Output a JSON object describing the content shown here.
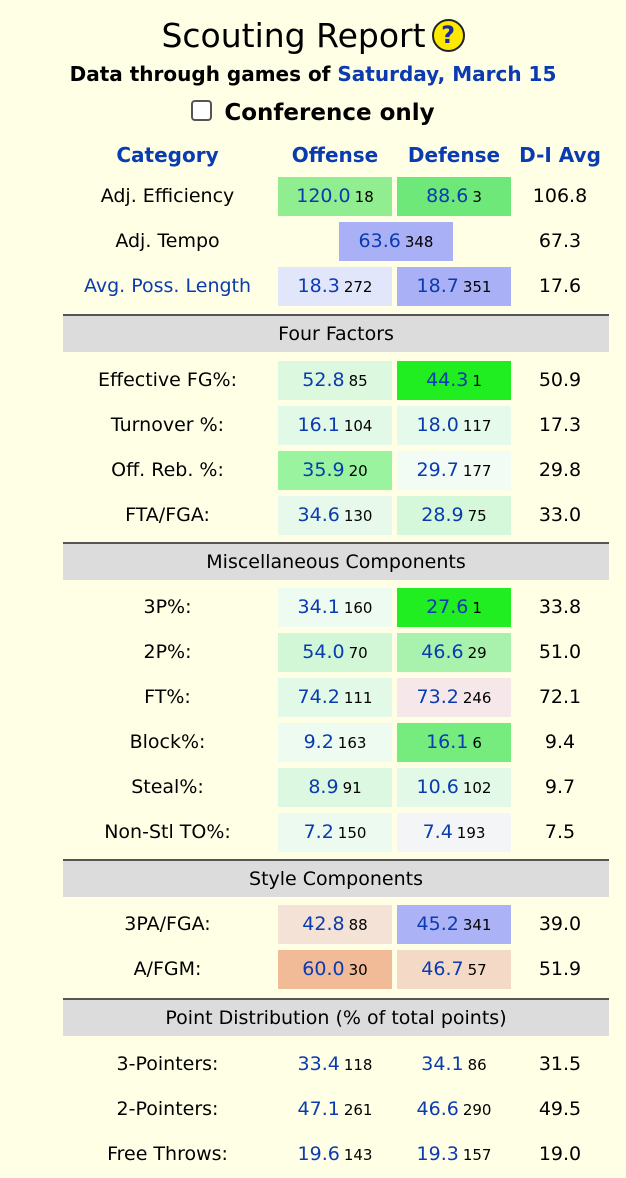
{
  "header": {
    "title": "Scouting Report",
    "help_glyph": "?",
    "subtitle_prefix": "Data through games of",
    "subtitle_date": "Saturday, March 15",
    "conference_only_label": "Conference only",
    "conference_only_checked": false
  },
  "columns": {
    "category": "Category",
    "offense": "Offense",
    "defense": "Defense",
    "avg": "D-I Avg"
  },
  "top_rows": [
    {
      "label": "Adj. Efficiency",
      "link": false,
      "off": {
        "val": "120.0",
        "rank": "18",
        "bg": "#90ee90"
      },
      "def": {
        "val": "88.6",
        "rank": "3",
        "bg": "#6fe87a"
      },
      "avg": "106.8"
    },
    {
      "label": "Adj. Tempo",
      "link": false,
      "combined": {
        "val": "63.6",
        "rank": "348",
        "bg": "#aab0f6"
      },
      "avg": "67.3"
    },
    {
      "label": "Avg. Poss. Length",
      "link": true,
      "off": {
        "val": "18.3",
        "rank": "272",
        "bg": "#e2e6fb"
      },
      "def": {
        "val": "18.7",
        "rank": "351",
        "bg": "#aab0f6"
      },
      "avg": "17.6"
    }
  ],
  "sections": [
    {
      "title": "Four Factors",
      "rows": [
        {
          "label": "Effective FG%:",
          "off": {
            "val": "52.8",
            "rank": "85",
            "bg": "#dcf9e0"
          },
          "def": {
            "val": "44.3",
            "rank": "1",
            "bg": "#21ee21"
          },
          "avg": "50.9"
        },
        {
          "label": "Turnover %:",
          "off": {
            "val": "16.1",
            "rank": "104",
            "bg": "#e2f9e8"
          },
          "def": {
            "val": "18.0",
            "rank": "117",
            "bg": "#e6faeb"
          },
          "avg": "17.3"
        },
        {
          "label": "Off. Reb. %:",
          "off": {
            "val": "35.9",
            "rank": "20",
            "bg": "#9af39e"
          },
          "def": {
            "val": "29.7",
            "rank": "177",
            "bg": "#f3fcf4"
          },
          "avg": "29.8"
        },
        {
          "label": "FTA/FGA:",
          "off": {
            "val": "34.6",
            "rank": "130",
            "bg": "#e7f9ea"
          },
          "def": {
            "val": "28.9",
            "rank": "75",
            "bg": "#d5f7da"
          },
          "avg": "33.0"
        }
      ]
    },
    {
      "title": "Miscellaneous Components",
      "rows": [
        {
          "label": "3P%:",
          "off": {
            "val": "34.1",
            "rank": "160",
            "bg": "#eefbf0"
          },
          "def": {
            "val": "27.6",
            "rank": "1",
            "bg": "#21ee21"
          },
          "avg": "33.8"
        },
        {
          "label": "2P%:",
          "off": {
            "val": "54.0",
            "rank": "70",
            "bg": "#d2f7d7"
          },
          "def": {
            "val": "46.6",
            "rank": "29",
            "bg": "#a8f2ad"
          },
          "avg": "51.0"
        },
        {
          "label": "FT%:",
          "off": {
            "val": "74.2",
            "rank": "111",
            "bg": "#e1f9e6"
          },
          "def": {
            "val": "73.2",
            "rank": "246",
            "bg": "#f5e7ea"
          },
          "avg": "72.1"
        },
        {
          "label": "Block%:",
          "off": {
            "val": "9.2",
            "rank": "163",
            "bg": "#eefbf0"
          },
          "def": {
            "val": "16.1",
            "rank": "6",
            "bg": "#76ec7e"
          },
          "avg": "9.4"
        },
        {
          "label": "Steal%:",
          "off": {
            "val": "8.9",
            "rank": "91",
            "bg": "#dcf8e0"
          },
          "def": {
            "val": "10.6",
            "rank": "102",
            "bg": "#e1f9e6"
          },
          "avg": "9.7"
        },
        {
          "label": "Non-Stl TO%:",
          "off": {
            "val": "7.2",
            "rank": "150",
            "bg": "#ecfaef"
          },
          "def": {
            "val": "7.4",
            "rank": "193",
            "bg": "#f3f5f7"
          },
          "avg": "7.5"
        }
      ]
    },
    {
      "title": "Style Components",
      "rows": [
        {
          "label": "3PA/FGA:",
          "off": {
            "val": "42.8",
            "rank": "88",
            "bg": "#f5e2d6"
          },
          "def": {
            "val": "45.2",
            "rank": "341",
            "bg": "#acb2f6"
          },
          "avg": "39.0"
        },
        {
          "label": "A/FGM:",
          "off": {
            "val": "60.0",
            "rank": "30",
            "bg": "#f2bb98"
          },
          "def": {
            "val": "46.7",
            "rank": "57",
            "bg": "#f4d9c6"
          },
          "avg": "51.9"
        }
      ]
    },
    {
      "title": "Point Distribution (% of total points)",
      "rows": [
        {
          "label": "3-Pointers:",
          "off": {
            "val": "33.4",
            "rank": "118",
            "bg": ""
          },
          "def": {
            "val": "34.1",
            "rank": "86",
            "bg": ""
          },
          "avg": "31.5"
        },
        {
          "label": "2-Pointers:",
          "off": {
            "val": "47.1",
            "rank": "261",
            "bg": ""
          },
          "def": {
            "val": "46.6",
            "rank": "290",
            "bg": ""
          },
          "avg": "49.5"
        },
        {
          "label": "Free Throws:",
          "off": {
            "val": "19.6",
            "rank": "143",
            "bg": ""
          },
          "def": {
            "val": "19.3",
            "rank": "157",
            "bg": ""
          },
          "avg": "19.0"
        }
      ]
    }
  ]
}
